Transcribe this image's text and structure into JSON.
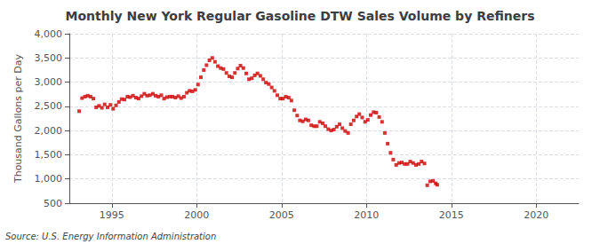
{
  "chart_data": {
    "type": "scatter",
    "title": "Monthly New York Regular Gasoline DTW Sales Volume by Refiners",
    "ylabel": "Thousand Gallons per Day",
    "annotations": [
      "Source: U.S. Energy Information Administration"
    ],
    "x": [
      1993.08,
      1993.25,
      1993.42,
      1993.58,
      1993.75,
      1993.92,
      1994.08,
      1994.25,
      1994.42,
      1994.58,
      1994.75,
      1994.92,
      1995.08,
      1995.25,
      1995.42,
      1995.58,
      1995.75,
      1995.92,
      1996.08,
      1996.25,
      1996.42,
      1996.58,
      1996.75,
      1996.92,
      1997.08,
      1997.25,
      1997.42,
      1997.58,
      1997.75,
      1997.92,
      1998.08,
      1998.25,
      1998.42,
      1998.58,
      1998.75,
      1998.92,
      1999.08,
      1999.25,
      1999.42,
      1999.58,
      1999.75,
      1999.92,
      2000.08,
      2000.25,
      2000.42,
      2000.58,
      2000.75,
      2000.92,
      2001.08,
      2001.25,
      2001.42,
      2001.58,
      2001.75,
      2001.92,
      2002.08,
      2002.25,
      2002.42,
      2002.58,
      2002.75,
      2002.92,
      2003.08,
      2003.25,
      2003.42,
      2003.58,
      2003.75,
      2003.92,
      2004.08,
      2004.25,
      2004.42,
      2004.58,
      2004.75,
      2004.92,
      2005.08,
      2005.25,
      2005.42,
      2005.58,
      2005.75,
      2005.92,
      2006.08,
      2006.25,
      2006.42,
      2006.58,
      2006.75,
      2006.92,
      2007.08,
      2007.25,
      2007.42,
      2007.58,
      2007.75,
      2007.92,
      2008.08,
      2008.25,
      2008.42,
      2008.58,
      2008.75,
      2008.92,
      2009.08,
      2009.25,
      2009.42,
      2009.58,
      2009.75,
      2009.92,
      2010.08,
      2010.25,
      2010.42,
      2010.58,
      2010.75,
      2010.92,
      2011.08,
      2011.25,
      2011.42,
      2011.58,
      2011.75,
      2011.92,
      2012.08,
      2012.25,
      2012.42,
      2012.58,
      2012.75,
      2012.92,
      2013.08,
      2013.25,
      2013.42,
      2013.58,
      2013.75,
      2013.92,
      2014.08,
      2014.17
    ],
    "values": [
      2400,
      2670,
      2700,
      2720,
      2700,
      2660,
      2480,
      2510,
      2470,
      2540,
      2480,
      2530,
      2450,
      2520,
      2590,
      2650,
      2640,
      2700,
      2690,
      2720,
      2680,
      2660,
      2710,
      2760,
      2720,
      2730,
      2760,
      2720,
      2700,
      2730,
      2660,
      2690,
      2700,
      2700,
      2680,
      2710,
      2670,
      2700,
      2780,
      2820,
      2810,
      2840,
      2950,
      3100,
      3250,
      3350,
      3450,
      3500,
      3420,
      3330,
      3290,
      3270,
      3190,
      3120,
      3100,
      3190,
      3280,
      3340,
      3290,
      3180,
      3060,
      3080,
      3140,
      3180,
      3130,
      3060,
      2990,
      2960,
      2890,
      2820,
      2730,
      2660,
      2660,
      2700,
      2680,
      2620,
      2420,
      2310,
      2210,
      2190,
      2230,
      2210,
      2110,
      2090,
      2090,
      2180,
      2150,
      2090,
      2030,
      2000,
      2020,
      2080,
      2130,
      2050,
      1990,
      1950,
      2130,
      2210,
      2290,
      2340,
      2270,
      2180,
      2220,
      2320,
      2380,
      2370,
      2280,
      2180,
      1950,
      1730,
      1540,
      1400,
      1290,
      1330,
      1340,
      1310,
      1310,
      1360,
      1330,
      1290,
      1310,
      1360,
      1320,
      870,
      950,
      960,
      910,
      880
    ],
    "color": "#CC0000",
    "marker": "square",
    "xlim": [
      1992.5,
      2022.5
    ],
    "xticks": [
      1995,
      2000,
      2005,
      2010,
      2015,
      2020
    ],
    "ylim": [
      500,
      4000
    ],
    "yticks": [
      500,
      {
        "value": 1000,
        "label": "1,000"
      },
      {
        "value": 1500,
        "label": "1,500"
      },
      {
        "value": 2000,
        "label": "2,000"
      },
      {
        "value": 2500,
        "label": "2,500"
      },
      {
        "value": 3000,
        "label": "3,000"
      },
      {
        "value": 3500,
        "label": "3,500"
      },
      {
        "value": 4000,
        "label": "4,000"
      }
    ],
    "grid": true
  }
}
